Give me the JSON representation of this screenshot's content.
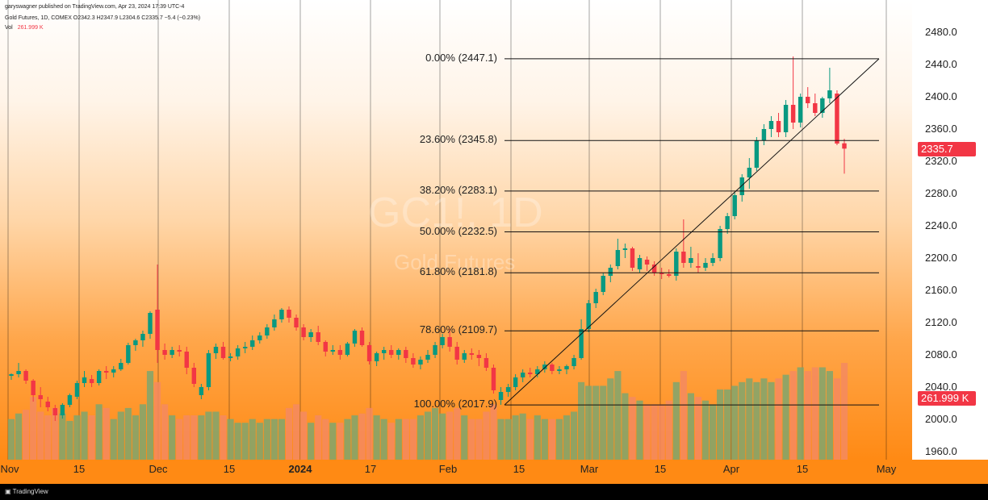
{
  "header": {
    "published": "garyswagner published on TradingView.com, Apr 23, 2024 17:39 UTC-4",
    "ohlc_line": "Gold Futures, 1D, COMEX O2342.3 H2347.9 L2304.6 C2335.7 −5.4 (−0.23%)",
    "vol_label": "Vol",
    "vol_value": "261.999 K"
  },
  "watermark": {
    "symbol": "GC1!, 1D",
    "name": "Gold Futures"
  },
  "price_tag": {
    "value": "2335.7",
    "color": "#f23645"
  },
  "volume_tag": {
    "value": "261.999 K",
    "color": "#f23645"
  },
  "footer": {
    "brand": "TradingView"
  },
  "colors": {
    "up": "#089981",
    "down": "#f23645",
    "vol_up": "#7fa66e",
    "vol_down": "#f58a60"
  },
  "chart_data": {
    "type": "candlestick",
    "title": "Gold Futures, 1D, COMEX",
    "y_ticks": [
      "2480.0",
      "2440.0",
      "2400.0",
      "2360.0",
      "2320.0",
      "2280.0",
      "2240.0",
      "2200.0",
      "2160.0",
      "2120.0",
      "2080.0",
      "2040.0",
      "2000.0",
      "1960.0"
    ],
    "ylim": [
      1960,
      2480
    ],
    "x_ticks": [
      "Nov",
      "15",
      "Dec",
      "15",
      "2024",
      "17",
      "Feb",
      "15",
      "Mar",
      "15",
      "Apr",
      "15",
      "May"
    ],
    "fibonacci": [
      {
        "label": "0.00% (2447.1)",
        "level": 2447.1
      },
      {
        "label": "23.60% (2345.8)",
        "level": 2345.8
      },
      {
        "label": "38.20% (2283.1)",
        "level": 2283.1
      },
      {
        "label": "50.00% (2232.5)",
        "level": 2232.5
      },
      {
        "label": "61.80% (2181.8)",
        "level": 2181.8
      },
      {
        "label": "78.60% (2109.7)",
        "level": 2109.7
      },
      {
        "label": "100.00% (2017.9)",
        "level": 2017.9
      }
    ],
    "candles": [
      [
        2054,
        2057,
        2049,
        2056,
        110
      ],
      [
        2056,
        2070,
        2052,
        2060,
        125
      ],
      [
        2060,
        2062,
        2044,
        2048,
        135
      ],
      [
        2048,
        2050,
        2022,
        2030,
        170
      ],
      [
        2030,
        2040,
        2015,
        2025,
        130
      ],
      [
        2022,
        2028,
        2010,
        2015,
        120
      ],
      [
        2014,
        2018,
        1998,
        2005,
        140
      ],
      [
        2005,
        2020,
        2001,
        2018,
        125
      ],
      [
        2018,
        2032,
        2015,
        2030,
        105
      ],
      [
        2028,
        2048,
        2025,
        2045,
        120
      ],
      [
        2045,
        2060,
        2040,
        2052,
        130
      ],
      [
        2050,
        2055,
        2040,
        2045,
        120
      ],
      [
        2045,
        2062,
        2042,
        2060,
        150
      ],
      [
        2060,
        2066,
        2050,
        2058,
        140
      ],
      [
        2058,
        2066,
        2052,
        2062,
        110
      ],
      [
        2062,
        2075,
        2060,
        2070,
        130
      ],
      [
        2070,
        2095,
        2068,
        2092,
        140
      ],
      [
        2092,
        2100,
        2085,
        2098,
        120
      ],
      [
        2098,
        2110,
        2090,
        2106,
        150
      ],
      [
        2106,
        2134,
        2100,
        2132,
        240
      ],
      [
        2136,
        2192,
        2070,
        2086,
        210
      ],
      [
        2086,
        2094,
        2074,
        2080,
        150
      ],
      [
        2080,
        2090,
        2076,
        2086,
        120
      ],
      [
        2086,
        2092,
        2078,
        2084,
        110
      ],
      [
        2084,
        2090,
        2056,
        2064,
        120
      ],
      [
        2064,
        2070,
        2040,
        2044,
        120
      ],
      [
        2030,
        2044,
        2025,
        2040,
        120
      ],
      [
        2040,
        2086,
        2036,
        2082,
        130
      ],
      [
        2082,
        2094,
        2075,
        2090,
        130
      ],
      [
        2090,
        2096,
        2074,
        2076,
        120
      ],
      [
        2076,
        2082,
        2072,
        2078,
        110
      ],
      [
        2078,
        2092,
        2074,
        2088,
        100
      ],
      [
        2088,
        2096,
        2082,
        2090,
        100
      ],
      [
        2090,
        2104,
        2086,
        2098,
        110
      ],
      [
        2098,
        2108,
        2094,
        2104,
        100
      ],
      [
        2104,
        2118,
        2100,
        2114,
        110
      ],
      [
        2114,
        2130,
        2110,
        2124,
        110
      ],
      [
        2124,
        2138,
        2120,
        2136,
        110
      ],
      [
        2136,
        2140,
        2120,
        2126,
        140
      ],
      [
        2126,
        2130,
        2110,
        2114,
        150
      ],
      [
        2114,
        2118,
        2098,
        2102,
        130
      ],
      [
        2102,
        2112,
        2096,
        2108,
        100
      ],
      [
        2108,
        2116,
        2092,
        2096,
        120
      ],
      [
        2096,
        2098,
        2078,
        2084,
        110
      ],
      [
        2084,
        2092,
        2080,
        2086,
        100
      ],
      [
        2086,
        2092,
        2074,
        2080,
        100
      ],
      [
        2080,
        2096,
        2078,
        2094,
        110
      ],
      [
        2094,
        2112,
        2090,
        2110,
        120
      ],
      [
        2110,
        2114,
        2090,
        2092,
        125
      ],
      [
        2092,
        2096,
        2068,
        2072,
        140
      ],
      [
        2072,
        2084,
        2066,
        2082,
        120
      ],
      [
        2082,
        2090,
        2074,
        2086,
        110
      ],
      [
        2086,
        2092,
        2076,
        2080,
        100
      ],
      [
        2080,
        2088,
        2074,
        2086,
        110
      ],
      [
        2086,
        2090,
        2070,
        2076,
        110
      ],
      [
        2076,
        2082,
        2064,
        2068,
        110
      ],
      [
        2068,
        2078,
        2062,
        2074,
        120
      ],
      [
        2074,
        2086,
        2070,
        2080,
        130
      ],
      [
        2080,
        2096,
        2076,
        2092,
        140
      ],
      [
        2092,
        2106,
        2088,
        2102,
        125
      ],
      [
        2102,
        2112,
        2084,
        2090,
        130
      ],
      [
        2090,
        2096,
        2068,
        2074,
        140
      ],
      [
        2074,
        2086,
        2070,
        2082,
        120
      ],
      [
        2082,
        2088,
        2074,
        2080,
        110
      ],
      [
        2080,
        2086,
        2066,
        2076,
        110
      ],
      [
        2076,
        2082,
        2060,
        2064,
        130
      ],
      [
        2064,
        2068,
        2032,
        2036,
        150
      ],
      [
        2024,
        2040,
        2018,
        2034,
        110
      ],
      [
        2034,
        2044,
        2028,
        2040,
        110
      ],
      [
        2040,
        2056,
        2036,
        2052,
        120
      ],
      [
        2052,
        2062,
        2046,
        2058,
        125
      ],
      [
        2058,
        2064,
        2052,
        2056,
        110
      ],
      [
        2056,
        2066,
        2052,
        2062,
        120
      ],
      [
        2062,
        2072,
        2058,
        2068,
        110
      ],
      [
        2068,
        2070,
        2056,
        2060,
        110
      ],
      [
        2060,
        2066,
        2056,
        2062,
        110
      ],
      [
        2062,
        2068,
        2056,
        2066,
        120
      ],
      [
        2066,
        2080,
        2062,
        2076,
        130
      ],
      [
        2076,
        2124,
        2074,
        2112,
        210
      ],
      [
        2112,
        2148,
        2108,
        2144,
        200
      ],
      [
        2144,
        2162,
        2138,
        2158,
        200
      ],
      [
        2158,
        2182,
        2154,
        2178,
        200
      ],
      [
        2178,
        2192,
        2170,
        2188,
        220
      ],
      [
        2190,
        2224,
        2186,
        2210,
        240
      ],
      [
        2210,
        2218,
        2200,
        2212,
        180
      ],
      [
        2212,
        2214,
        2184,
        2188,
        170
      ],
      [
        2186,
        2204,
        2182,
        2200,
        160
      ],
      [
        2198,
        2202,
        2184,
        2192,
        150
      ],
      [
        2192,
        2196,
        2178,
        2182,
        150
      ],
      [
        2182,
        2188,
        2174,
        2180,
        150
      ],
      [
        2180,
        2186,
        2176,
        2178,
        160
      ],
      [
        2178,
        2212,
        2172,
        2208,
        210
      ],
      [
        2208,
        2248,
        2188,
        2194,
        240
      ],
      [
        2194,
        2214,
        2188,
        2200,
        180
      ],
      [
        2190,
        2206,
        2182,
        2188,
        170
      ],
      [
        2188,
        2200,
        2184,
        2194,
        160
      ],
      [
        2194,
        2206,
        2190,
        2200,
        150
      ],
      [
        2200,
        2240,
        2196,
        2236,
        190
      ],
      [
        2236,
        2256,
        2230,
        2252,
        190
      ],
      [
        2252,
        2282,
        2248,
        2278,
        200
      ],
      [
        2278,
        2304,
        2270,
        2300,
        210
      ],
      [
        2300,
        2324,
        2286,
        2312,
        220
      ],
      [
        2312,
        2350,
        2308,
        2346,
        210
      ],
      [
        2346,
        2366,
        2340,
        2360,
        220
      ],
      [
        2360,
        2376,
        2350,
        2370,
        210
      ],
      [
        2370,
        2380,
        2350,
        2356,
        220
      ],
      [
        2356,
        2396,
        2350,
        2390,
        230
      ],
      [
        2390,
        2450,
        2360,
        2368,
        240
      ],
      [
        2368,
        2404,
        2362,
        2400,
        250
      ],
      [
        2400,
        2412,
        2386,
        2392,
        240
      ],
      [
        2392,
        2404,
        2376,
        2380,
        250
      ],
      [
        2380,
        2400,
        2374,
        2398,
        250
      ],
      [
        2398,
        2436,
        2392,
        2408,
        240
      ],
      [
        2404,
        2408,
        2340,
        2342,
        220
      ],
      [
        2342.3,
        2347.9,
        2304.6,
        2335.7,
        262
      ]
    ]
  }
}
